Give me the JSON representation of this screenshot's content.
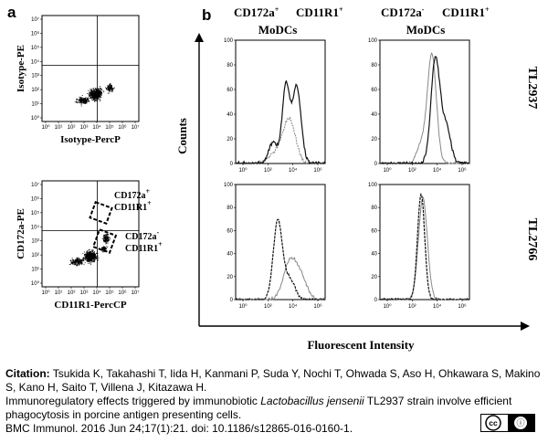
{
  "panels": {
    "a": {
      "letter": "a",
      "top_plot": {
        "ylabel": "Isotype-PE",
        "xlabel": "Isotype-PercP"
      },
      "bottom_plot": {
        "ylabel": "CD172a-PE",
        "xlabel": "CD11R1-PercCP",
        "gate1": {
          "line1": "CD172a",
          "sup1": "+",
          "line2": "CD11R1",
          "sup2": "+"
        },
        "gate2": {
          "line1": "CD172a",
          "sup1": "-",
          "line2": "CD11R1",
          "sup2": "+"
        }
      },
      "x_ticks": [
        "10⁰",
        "10¹",
        "10²",
        "10³",
        "10⁴",
        "10⁵",
        "10⁶",
        "10⁷"
      ],
      "y_ticks": [
        "10⁷",
        "10⁶",
        "10⁵",
        "10⁴",
        "10³",
        "10²",
        "10¹",
        "10⁰"
      ]
    },
    "b": {
      "letter": "b",
      "col1": {
        "line1a": "CD172a",
        "sup_a": "+",
        "line1b": "CD11R1",
        "sup_b": "+",
        "line2": "MoDCs"
      },
      "col2": {
        "line1a": "CD172a",
        "sup_a": "-",
        "line1b": "CD11R1",
        "sup_b": "+",
        "line2": "MoDCs"
      },
      "row1": "TL2937",
      "row2": "TL2766",
      "ylabel": "Counts",
      "xlabel": "Fluorescent Intensity",
      "hist_y_ticks": [
        "100",
        "80",
        "60",
        "40",
        "20",
        "0"
      ],
      "hist_x_ticks": [
        "10⁰",
        "10²",
        "10⁴",
        "10⁶"
      ]
    }
  },
  "citation": {
    "label": "Citation:",
    "authors": " Tsukida K, Takahashi T, Iida H, Kanmani P, Suda Y, Nochi T, Ohwada S, Aso H, Ohkawara S, Makino S, Kano H, Saito T, Villena J, Kitazawa H.",
    "title_pre": "Immunoregulatory effects triggered by immunobiotic ",
    "title_species": "Lactobacillus jensenii",
    "title_post": " TL2937 strain involve efficient phagocytosis in porcine antigen presenting cells.",
    "journal": "BMC Immunol. 2016 Jun 24;17(1):21. doi: 10.1186/s12865-016-0160-1."
  },
  "license_badge": {
    "cc": "cc",
    "by": "ⓘ",
    "text": "BY"
  }
}
